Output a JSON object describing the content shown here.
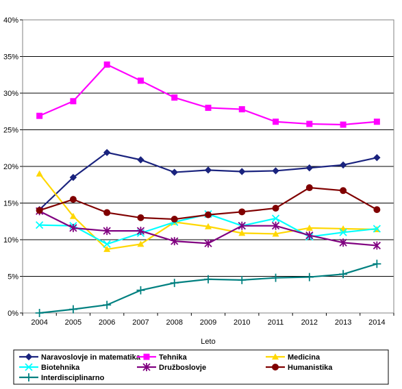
{
  "chart_data": {
    "type": "line",
    "xlabel": "Leto",
    "ylabel": "",
    "ylim": [
      0,
      40
    ],
    "y_tick_labels": [
      "0%",
      "5%",
      "10%",
      "15%",
      "20%",
      "25%",
      "30%",
      "35%",
      "40%"
    ],
    "categories": [
      "2004",
      "2005",
      "2006",
      "2007",
      "2008",
      "2009",
      "2010",
      "2011",
      "2012",
      "2013",
      "2014"
    ],
    "grid": "horizontal",
    "legend": "bottom",
    "series": [
      {
        "name": "Naravoslovje in matematika",
        "color": "#1a237e",
        "marker": "diamond",
        "values": [
          14.1,
          18.5,
          21.9,
          20.9,
          19.2,
          19.5,
          19.3,
          19.4,
          19.8,
          20.2,
          21.2
        ]
      },
      {
        "name": "Tehnika",
        "color": "#ff00ff",
        "marker": "square",
        "values": [
          26.9,
          28.9,
          33.9,
          31.7,
          29.4,
          28.0,
          27.8,
          26.1,
          25.8,
          25.7,
          26.1
        ]
      },
      {
        "name": "Medicina",
        "color": "#ffd700",
        "marker": "triangle",
        "values": [
          19.0,
          13.2,
          8.7,
          9.4,
          12.4,
          11.8,
          10.9,
          10.8,
          11.6,
          11.5,
          11.4
        ]
      },
      {
        "name": "Biotehnika",
        "color": "#00ffff",
        "marker": "x",
        "values": [
          12.0,
          11.9,
          9.4,
          10.9,
          12.4,
          13.5,
          11.9,
          12.9,
          10.4,
          11.0,
          11.5
        ]
      },
      {
        "name": "Družboslovje",
        "color": "#800080",
        "marker": "star",
        "values": [
          13.9,
          11.6,
          11.2,
          11.2,
          9.8,
          9.5,
          11.9,
          11.9,
          10.6,
          9.6,
          9.2
        ]
      },
      {
        "name": "Humanistika",
        "color": "#800000",
        "marker": "circle",
        "values": [
          14.0,
          15.5,
          13.7,
          13.0,
          12.8,
          13.4,
          13.8,
          14.3,
          17.1,
          16.7,
          14.1
        ]
      },
      {
        "name": "Interdisciplinarno",
        "color": "#008080",
        "marker": "plus",
        "values": [
          0.0,
          0.5,
          1.1,
          3.1,
          4.1,
          4.6,
          4.5,
          4.8,
          4.9,
          5.3,
          6.7
        ]
      }
    ]
  }
}
